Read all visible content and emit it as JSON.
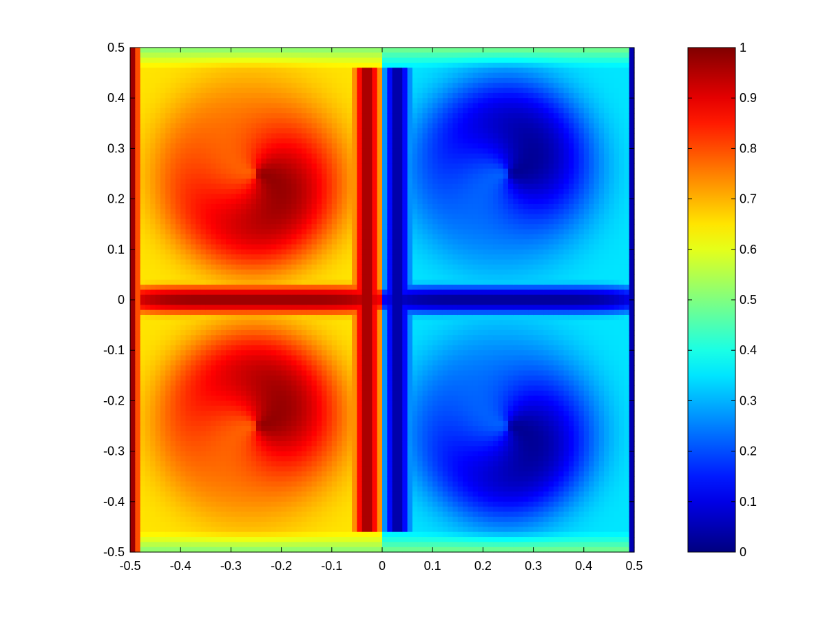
{
  "chart_data": {
    "type": "heatmap",
    "title": "",
    "xlabel": "",
    "ylabel": "",
    "xlim": [
      -0.5,
      0.5
    ],
    "ylim": [
      -0.5,
      0.5
    ],
    "x_ticks": [
      "-0.5",
      "-0.4",
      "-0.3",
      "-0.2",
      "-0.1",
      "0",
      "0.1",
      "0.2",
      "0.3",
      "0.4",
      "0.5"
    ],
    "y_ticks": [
      "0.5",
      "0.4",
      "0.3",
      "0.2",
      "0.1",
      "0",
      "-0.1",
      "-0.2",
      "-0.3",
      "-0.4",
      "-0.5"
    ],
    "colorbar": {
      "colormap": "jet",
      "range": [
        0,
        1
      ],
      "ticks": [
        "1",
        "0.9",
        "0.8",
        "0.7",
        "0.6",
        "0.5",
        "0.4",
        "0.3",
        "0.2",
        "0.1",
        "0"
      ]
    },
    "grid": false,
    "field": {
      "grid_size": 100,
      "description_values": {
        "background": 0.5,
        "left_boundary_strip": 0.97,
        "right_boundary_strip": 0.05,
        "left_vortex_peak": 0.9,
        "right_vortex_trough": 0.1,
        "midline_y0_left": 0.98,
        "midline_y0_right": 0.02
      }
    }
  }
}
